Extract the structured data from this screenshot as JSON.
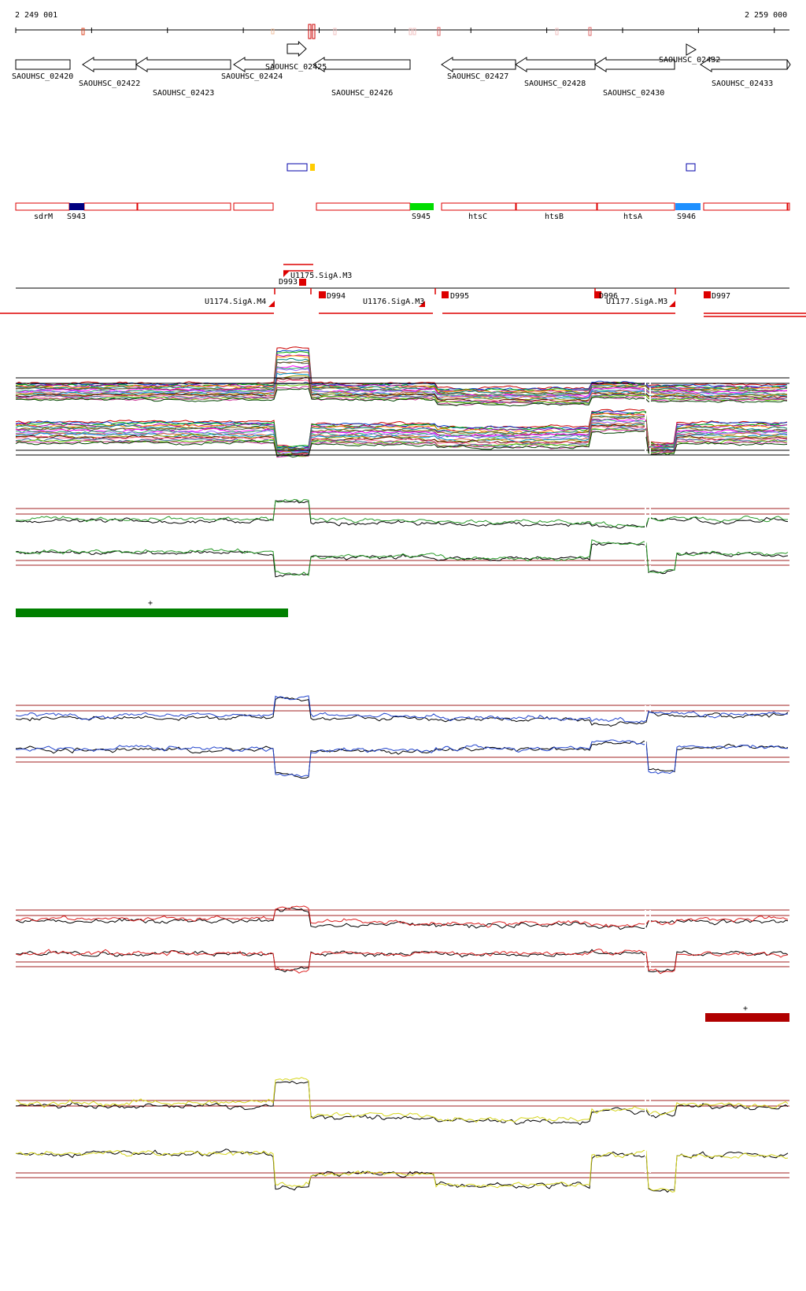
{
  "coords": {
    "start": "2 249 001",
    "end": "2 259 000"
  },
  "genes": [
    {
      "label": "SAOUHSC_02420",
      "dir": "+"
    },
    {
      "label": "SAOUHSC_02422",
      "dir": "-"
    },
    {
      "label": "SAOUHSC_02423",
      "dir": "-"
    },
    {
      "label": "SAOUHSC_02424",
      "dir": "-"
    },
    {
      "label": "SAOUHSC_02425",
      "dir": "+"
    },
    {
      "label": "SAOUHSC_02426",
      "dir": "-"
    },
    {
      "label": "SAOUHSC_02427",
      "dir": "-"
    },
    {
      "label": "SAOUHSC_02428",
      "dir": "-"
    },
    {
      "label": "SAOUHSC_02430",
      "dir": "-"
    },
    {
      "label": "SAOUHSC_02432",
      "dir": "+"
    },
    {
      "label": "SAOUHSC_02433",
      "dir": "-"
    }
  ],
  "segments": [
    {
      "label": "sdrM"
    },
    {
      "label": "S943",
      "color": "#000080"
    },
    {
      "label": "S945",
      "color": "#00dd00"
    },
    {
      "label": "htsC"
    },
    {
      "label": "htsB"
    },
    {
      "label": "htsA"
    },
    {
      "label": "S946",
      "color": "#1e90ff"
    }
  ],
  "regulatory": [
    {
      "label": "U1175.SigA.M3"
    },
    {
      "label": "D993"
    },
    {
      "label": "D994"
    },
    {
      "label": "D995"
    },
    {
      "label": "D996"
    },
    {
      "label": "D997"
    },
    {
      "label": "U1174.SigA.M4"
    },
    {
      "label": "U1176.SigA.M3"
    },
    {
      "label": "U1177.SigA.M3"
    }
  ],
  "condition_bars": [
    {
      "sign": "+",
      "color": "#008000"
    },
    {
      "sign": "+",
      "color": "#b00000"
    }
  ],
  "track_colors": {
    "green": "#2a9a2a",
    "blue": "#2244cc",
    "red": "#dd2222",
    "yellow": "#d6d61e",
    "threshold": "#a02020"
  }
}
